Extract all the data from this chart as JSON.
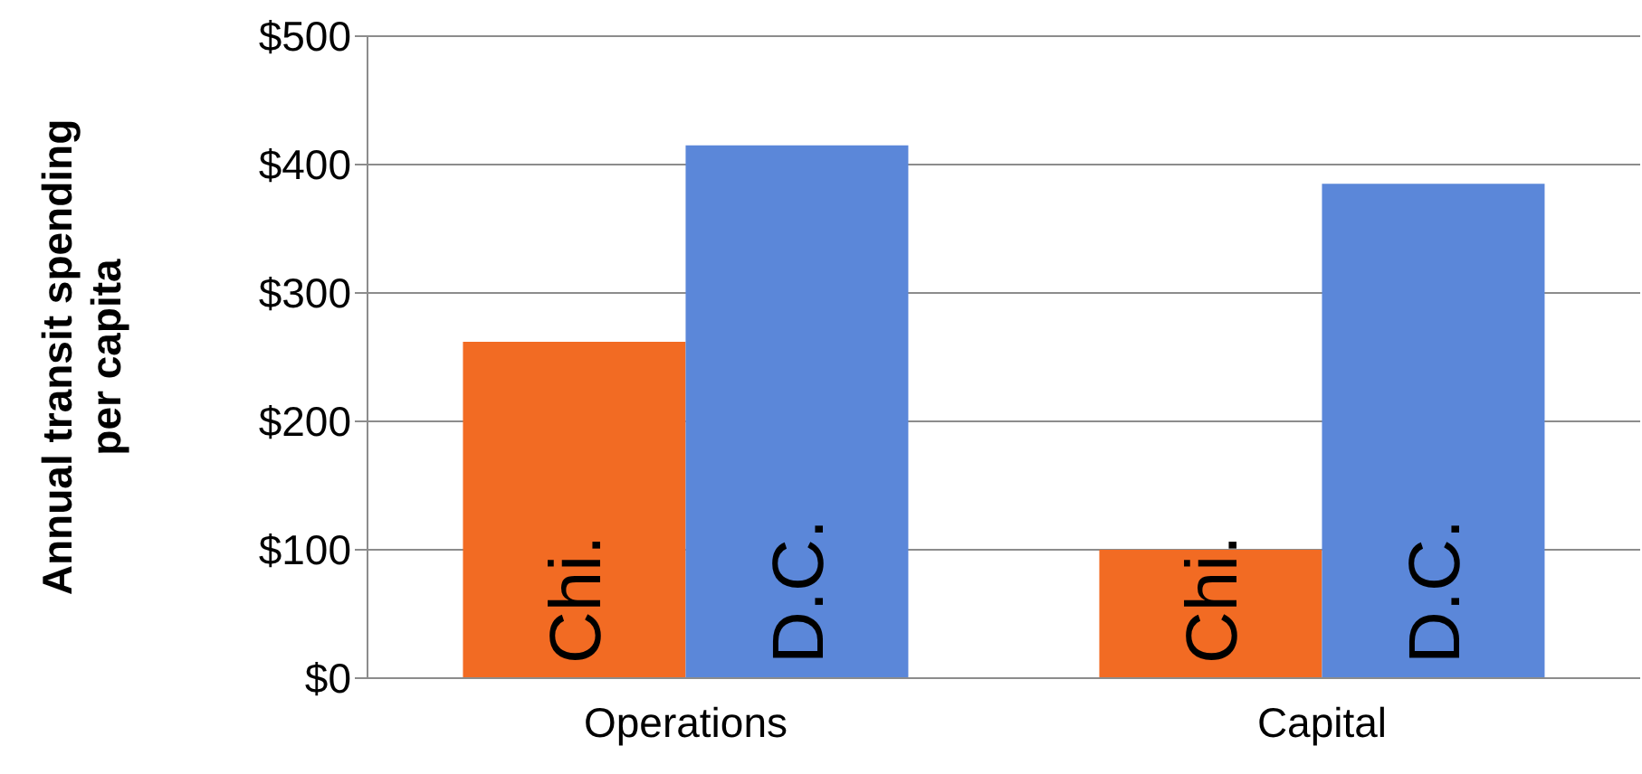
{
  "chart_data": {
    "type": "bar",
    "categories": [
      "Operations",
      "Capital"
    ],
    "ylabel": "Annual transit spending per capita",
    "series": [
      {
        "name": "Chi.",
        "color": "#f26b23",
        "values": [
          262,
          100
        ]
      },
      {
        "name": "D.C.",
        "color": "#5b87d9",
        "values": [
          415,
          385
        ]
      }
    ],
    "ylim": [
      0,
      500
    ],
    "yticks": [
      {
        "value": 0,
        "label": "$0"
      },
      {
        "value": 100,
        "label": "$100"
      },
      {
        "value": 200,
        "label": "$200"
      },
      {
        "value": 300,
        "label": "$300"
      },
      {
        "value": 400,
        "label": "$400"
      },
      {
        "value": 500,
        "label": "$500"
      }
    ],
    "grid": "y",
    "legend": false
  }
}
